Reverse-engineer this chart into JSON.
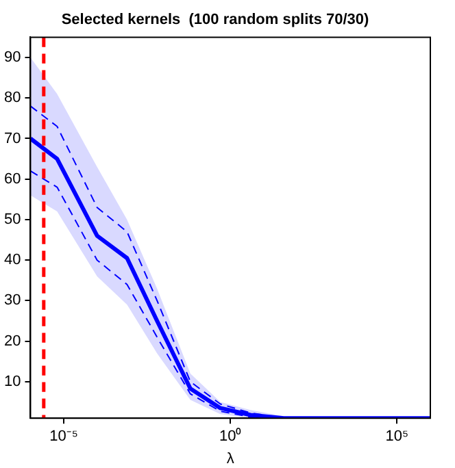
{
  "chart_data": {
    "type": "line",
    "title": "Selected kernels  (100 random splits 70/30)",
    "xlabel": "λ",
    "x": [
      1e-06,
      6.3e-06,
      0.0001,
      0.00079,
      0.0063,
      0.063,
      0.5,
      4,
      40,
      1000000.0
    ],
    "series": [
      {
        "color": "#0000ff",
        "values": [
          70,
          65,
          46,
          40.5,
          25,
          8.3,
          3.5,
          1.8,
          1,
          1
        ],
        "lower": [
          56,
          52,
          36,
          29,
          17,
          5.5,
          2,
          1,
          1,
          1
        ],
        "upper": [
          90,
          81,
          63,
          50,
          33,
          12,
          5,
          3,
          1.5,
          1
        ]
      },
      {
        "color": "#0000ff",
        "line_style": "dashed",
        "values": [
          78,
          73,
          53,
          47,
          30,
          10,
          4.5,
          2.3,
          1,
          1
        ]
      },
      {
        "color": "#0000ff",
        "line_style": "dashed",
        "values": [
          62,
          58,
          40,
          34,
          21,
          7,
          2.7,
          1.3,
          1,
          1
        ]
      }
    ],
    "log": "x",
    "xlim": [
      1e-06,
      1000000.0
    ],
    "ylim": [
      1,
      95
    ],
    "xticks": [
      {
        "value": 1e-05,
        "label": "10⁻⁵"
      },
      {
        "value": 1,
        "label": "10⁰"
      },
      {
        "value": 100000,
        "label": "10⁵"
      }
    ],
    "yticks": [
      10,
      20,
      30,
      40,
      50,
      60,
      70,
      80,
      90
    ],
    "ref_lines": [
      {
        "axis": "x",
        "value": 2.5e-06,
        "color": "#ff0000",
        "line_style": "dashed"
      }
    ],
    "grid": false,
    "legend": false,
    "marker": "none"
  }
}
